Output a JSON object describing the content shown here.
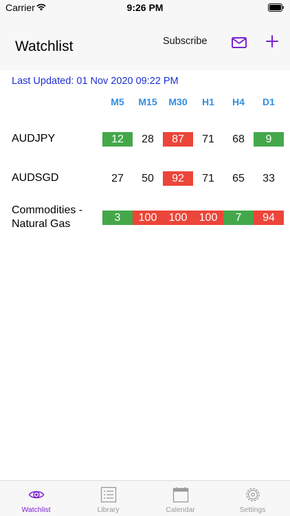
{
  "status_bar": {
    "carrier": "Carrier",
    "time": "9:26 PM"
  },
  "nav": {
    "title": "Watchlist",
    "subscribe_label": "Subscribe"
  },
  "last_updated": "Last Updated: 01 Nov 2020 09:22 PM",
  "columns": [
    "M5",
    "M15",
    "M30",
    "H1",
    "H4",
    "D1"
  ],
  "rows": [
    {
      "label": "AUDJPY",
      "cells": [
        {
          "value": "12",
          "color": "green"
        },
        {
          "value": "28",
          "color": "none"
        },
        {
          "value": "87",
          "color": "red"
        },
        {
          "value": "71",
          "color": "none"
        },
        {
          "value": "68",
          "color": "none"
        },
        {
          "value": "9",
          "color": "green"
        }
      ]
    },
    {
      "label": "AUDSGD",
      "cells": [
        {
          "value": "27",
          "color": "none"
        },
        {
          "value": "50",
          "color": "none"
        },
        {
          "value": "92",
          "color": "red"
        },
        {
          "value": "71",
          "color": "none"
        },
        {
          "value": "65",
          "color": "none"
        },
        {
          "value": "33",
          "color": "none"
        }
      ]
    },
    {
      "label": "Commodities - Natural Gas",
      "cells": [
        {
          "value": "3",
          "color": "green"
        },
        {
          "value": "100",
          "color": "red"
        },
        {
          "value": "100",
          "color": "red"
        },
        {
          "value": "100",
          "color": "red"
        },
        {
          "value": "7",
          "color": "green"
        },
        {
          "value": "94",
          "color": "red"
        }
      ]
    }
  ],
  "tabs": [
    {
      "label": "Watchlist",
      "icon": "eye-icon",
      "active": true
    },
    {
      "label": "Library",
      "icon": "list-icon",
      "active": false
    },
    {
      "label": "Calendar",
      "icon": "calendar-icon",
      "active": false
    },
    {
      "label": "Settings",
      "icon": "gear-icon",
      "active": false
    }
  ],
  "colors": {
    "accent": "#7b22cf",
    "green": "#44a84a",
    "red": "#ec4539",
    "link_blue": "#1d2fd1",
    "column_blue": "#2f8fe0"
  }
}
